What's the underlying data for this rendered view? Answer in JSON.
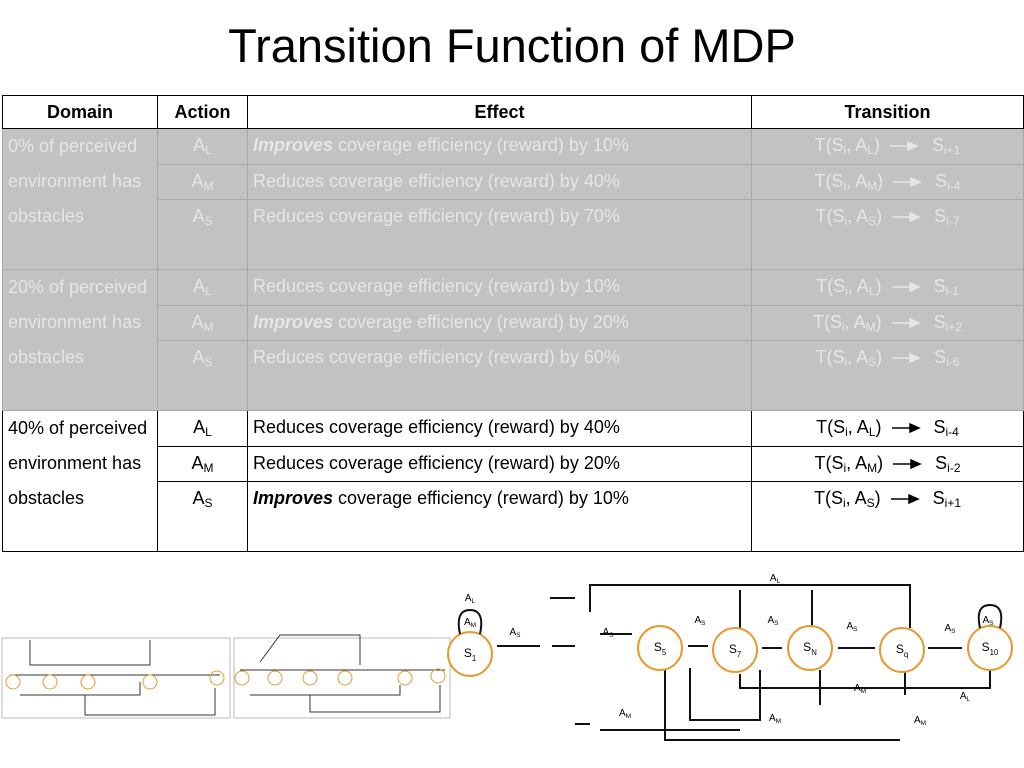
{
  "title": "Transition Function of MDP",
  "table": {
    "header": [
      "Domain",
      "Action",
      "Effect",
      "Transition"
    ],
    "groups": [
      {
        "domain": "0% of perceived environment has obstacles",
        "rows": [
          {
            "action": [
              "A",
              "L"
            ],
            "effect": {
              "em": "Improves",
              "text": "coverage efficiency (reward) by 10%"
            },
            "transition": [
              "T(S",
              "i",
              ", A",
              "L",
              ")"
            ],
            "target": [
              "S",
              "i+1"
            ]
          },
          {
            "action": [
              "A",
              "M"
            ],
            "effect": {
              "text": "Reduces coverage efficiency (reward) by 40%"
            },
            "transition": [
              "T(S",
              "i",
              ", A",
              "M",
              ")"
            ],
            "target": [
              "S",
              "i-4"
            ]
          },
          {
            "action": [
              "A",
              "S"
            ],
            "effect": {
              "text": "Reduces coverage efficiency (reward) by 70%"
            },
            "transition": [
              "T(S",
              "i",
              ", A",
              "S",
              ")"
            ],
            "target": [
              "S",
              "i-7"
            ]
          }
        ]
      },
      {
        "domain": "20% of perceived environment has obstacles",
        "rows": [
          {
            "action": [
              "A",
              "L"
            ],
            "effect": {
              "text": "Reduces coverage efficiency (reward) by 10%"
            },
            "transition": [
              "T(S",
              "i",
              ", A",
              "L",
              ")"
            ],
            "target": [
              "S",
              "i-1"
            ]
          },
          {
            "action": [
              "A",
              "M"
            ],
            "effect": {
              "em": "Improves",
              "text": "coverage efficiency (reward) by 20%"
            },
            "transition": [
              "T(S",
              "i",
              ", A",
              "M",
              ")"
            ],
            "target": [
              "S",
              "i+2"
            ]
          },
          {
            "action": [
              "A",
              "S"
            ],
            "effect": {
              "text": "Reduces coverage efficiency (reward) by 60%"
            },
            "transition": [
              "T(S",
              "i",
              ", A",
              "S",
              ")"
            ],
            "target": [
              "S",
              "i-6"
            ]
          }
        ]
      },
      {
        "domain": "40% of perceived environment has obstacles",
        "rows": [
          {
            "action": [
              "A",
              "L"
            ],
            "effect": {
              "text": "Reduces coverage efficiency (reward) by 40%"
            },
            "transition": [
              "T(S",
              "i",
              ", A",
              "L",
              ")"
            ],
            "target": [
              "S",
              "i-4"
            ]
          },
          {
            "action": [
              "A",
              "M"
            ],
            "effect": {
              "text": "Reduces coverage efficiency (reward) by 20%"
            },
            "transition": [
              "T(S",
              "i",
              ", A",
              "M",
              ")"
            ],
            "target": [
              "S",
              "i-2"
            ]
          },
          {
            "action": [
              "A",
              "S"
            ],
            "effect": {
              "em": "Improves",
              "text": "coverage efficiency (reward) by 10%"
            },
            "transition": [
              "T(S",
              "i",
              ", A",
              "S",
              ")"
            ],
            "target": [
              "S",
              "i+1"
            ]
          }
        ]
      }
    ]
  },
  "diagram": {
    "nodes": [
      [
        "S",
        "1"
      ],
      [
        "S",
        "5"
      ],
      [
        "S",
        "7"
      ],
      [
        "S",
        "N"
      ],
      [
        "S",
        "q"
      ],
      [
        "S",
        "10"
      ]
    ],
    "edge_labels": [
      [
        "A",
        "L"
      ],
      [
        "A",
        "M"
      ],
      [
        "A",
        "S"
      ],
      [
        "A",
        "S"
      ],
      [
        "A",
        "S"
      ],
      [
        "A",
        "S"
      ],
      [
        "A",
        "S"
      ],
      [
        "A",
        "S"
      ],
      [
        "A",
        "S"
      ],
      [
        "A",
        "L"
      ],
      [
        "A",
        "M"
      ],
      [
        "A",
        "L"
      ],
      [
        "A",
        "M"
      ],
      [
        "A",
        "M"
      ],
      [
        "A",
        "M"
      ]
    ]
  }
}
